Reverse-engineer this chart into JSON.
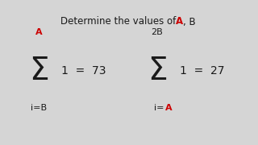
{
  "bg_color": "#d5d5d5",
  "red_color": "#cc0000",
  "dark_color": "#1a1a1a",
  "title_prefix": "Determine the values of  ",
  "title_A": "A",
  "title_suffix": ", B",
  "sum1_upper": "A",
  "sum1_lower_plain": "i=B",
  "sum1_result": "1 = 73",
  "sum2_upper": "2B",
  "sum2_lower_plain": "i=",
  "sum2_lower_red": "A",
  "sum2_result": "1 = 27"
}
